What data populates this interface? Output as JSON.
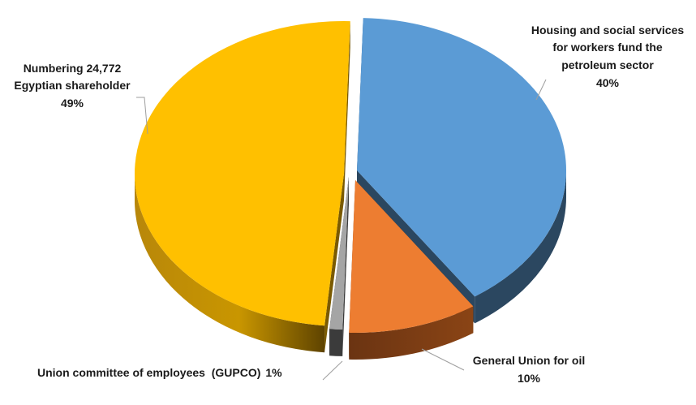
{
  "chart_data": {
    "type": "pie",
    "style": "3d-exploded",
    "title": "",
    "slices": [
      {
        "lines": [
          "Housing and social services",
          "for workers fund the",
          "petroleum sector"
        ],
        "value": 40,
        "value_label": "40%",
        "color": "#5b9bd5",
        "side_color": "#2b4760"
      },
      {
        "lines": [
          "General Union for oil"
        ],
        "value": 10,
        "value_label": "10%",
        "color": "#ed7d31",
        "side_color": "#6b3412"
      },
      {
        "lines": [
          "Union committee of employees  (GUPCO)"
        ],
        "value": 1,
        "value_label": "1%",
        "color": "#a5a5a5",
        "side_color": "#3b3b3b"
      },
      {
        "lines": [
          "Numbering 24,772",
          "Egyptian shareholder"
        ],
        "value": 49,
        "value_label": "49%",
        "color": "#ffc000",
        "side_color": "#7a5a00"
      }
    ]
  }
}
